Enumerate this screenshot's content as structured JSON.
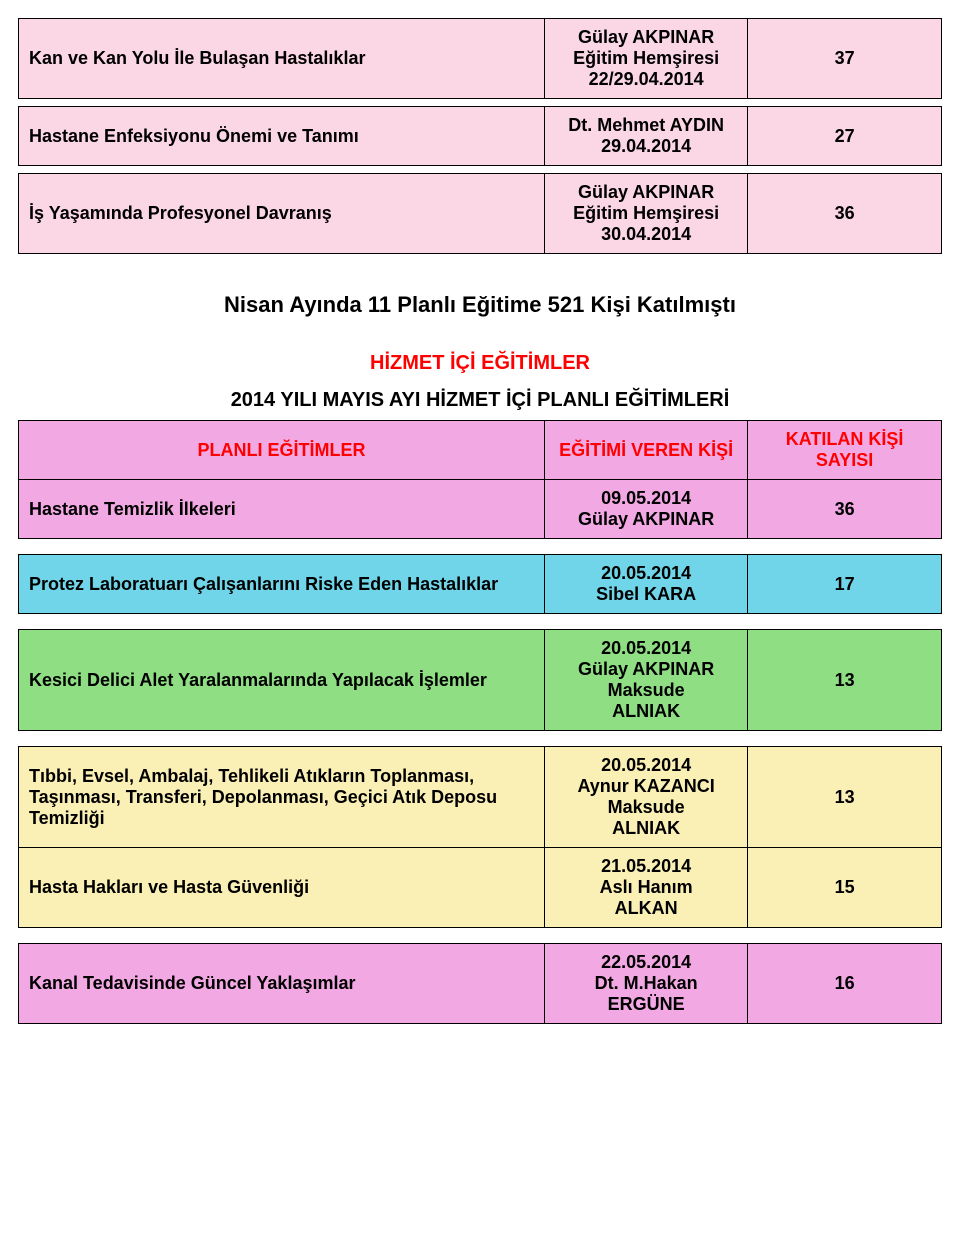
{
  "palette": {
    "row_pink": "#fbd7e5",
    "row_violet": "#f2a8e3",
    "row_cyan": "#70d5e8",
    "row_green": "#8fde84",
    "row_sand": "#faefb5",
    "border": "#000000",
    "red": "#ff0000"
  },
  "topRows": [
    {
      "bg": "row_pink",
      "c1": "Kan ve Kan Yolu İle Bulaşan Hastalıklar",
      "c2": "Gülay AKPINAR\nEğitim Hemşiresi\n22/29.04.2014",
      "c3": "37"
    },
    {
      "bg": "row_pink",
      "c1": "Hastane Enfeksiyonu Önemi ve Tanımı",
      "c2": "Dt. Mehmet AYDIN\n29.04.2014",
      "c3": "27"
    },
    {
      "bg": "row_pink",
      "c1": "İş Yaşamında Profesyonel Davranış",
      "c2": "Gülay AKPINAR\nEğitim Hemşiresi\n30.04.2014",
      "c3": "36"
    }
  ],
  "summary": "Nisan Ayında 11 Planlı Eğitime 521 Kişi Katılmıştı",
  "section_title": "HİZMET İÇİ EĞİTİMLER",
  "subheader": "2014 YILI MAYIS AYI HİZMET İÇİ PLANLI EĞİTİMLERİ",
  "header_cells": {
    "c1": "PLANLI EĞİTİMLER",
    "c2": "EĞİTİMİ VEREN KİŞİ",
    "c3": "KATILAN KİŞİ SAYISI"
  },
  "groups": [
    {
      "rows": [
        {
          "bg": "row_violet",
          "header": true
        },
        {
          "bg": "row_violet",
          "c1": "Hastane Temizlik İlkeleri",
          "c2": "09.05.2014\nGülay AKPINAR",
          "c3": "36"
        }
      ]
    },
    {
      "rows": [
        {
          "bg": "row_cyan",
          "c1": "Protez Laboratuarı Çalışanlarını Riske Eden Hastalıklar",
          "c2": "20.05.2014\nSibel KARA",
          "c3": "17"
        }
      ]
    },
    {
      "rows": [
        {
          "bg": "row_green",
          "c1": "Kesici Delici Alet Yaralanmalarında Yapılacak İşlemler",
          "c2": "20.05.2014\nGülay AKPINAR\nMaksude\nALNIAK",
          "c3": "13"
        }
      ]
    },
    {
      "rows": [
        {
          "bg": "row_sand",
          "c1": "Tıbbi, Evsel, Ambalaj, Tehlikeli Atıkların Toplanması, Taşınması, Transferi, Depolanması, Geçici Atık Deposu Temizliği",
          "c2": "20.05.2014\nAynur KAZANCI\nMaksude\nALNIAK",
          "c3": "13"
        },
        {
          "bg": "row_sand",
          "c1": "Hasta Hakları ve Hasta Güvenliği",
          "c2": "21.05.2014\nAslı Hanım\nALKAN",
          "c3": "15"
        }
      ]
    },
    {
      "rows": [
        {
          "bg": "row_violet",
          "c1": "Kanal Tedavisinde Güncel Yaklaşımlar",
          "c2": "22.05.2014\nDt. M.Hakan\nERGÜNE",
          "c3": "16"
        }
      ]
    }
  ]
}
